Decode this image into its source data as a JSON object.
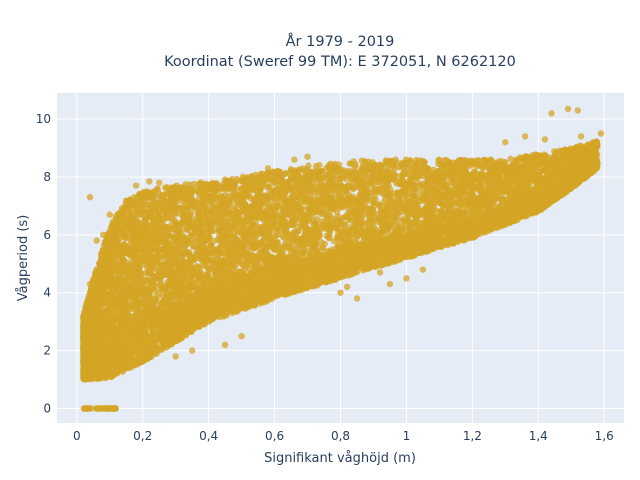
{
  "chart_data": {
    "type": "scatter",
    "title_lines": [
      "År 1979 - 2019",
      "Koordinat (Sweref 99 TM): E 372051, N 6262120"
    ],
    "xlabel": "Signifikant våghöjd (m)",
    "ylabel": "Vågperiod (s)",
    "xlim": [
      -0.06,
      1.66
    ],
    "ylim": [
      -0.5,
      10.9
    ],
    "x_ticks": [
      0,
      0.2,
      0.4,
      0.6,
      0.8,
      1,
      1.2,
      1.4,
      1.6
    ],
    "x_tick_labels": [
      "0",
      "0,2",
      "0,4",
      "0,6",
      "0,8",
      "1",
      "1,2",
      "1,4",
      "1,6"
    ],
    "y_ticks": [
      0,
      2,
      4,
      6,
      8,
      10
    ],
    "y_tick_labels": [
      "0",
      "2",
      "4",
      "6",
      "8",
      "10"
    ],
    "grid": true,
    "background_color": "#e5ecf6",
    "grid_color": "#ffffff",
    "point_color": "#d4a526",
    "series": [
      {
        "envelope": {
          "lower": [
            [
              0.02,
              1.0
            ],
            [
              0.1,
              1.05
            ],
            [
              0.2,
              1.6
            ],
            [
              0.3,
              2.3
            ],
            [
              0.4,
              3.0
            ],
            [
              0.6,
              3.8
            ],
            [
              0.8,
              4.5
            ],
            [
              1.0,
              5.2
            ],
            [
              1.2,
              5.9
            ],
            [
              1.4,
              6.8
            ],
            [
              1.5,
              7.6
            ],
            [
              1.58,
              8.3
            ]
          ],
          "upper": [
            [
              0.02,
              3.2
            ],
            [
              0.05,
              4.5
            ],
            [
              0.1,
              6.3
            ],
            [
              0.15,
              7.2
            ],
            [
              0.2,
              7.5
            ],
            [
              0.3,
              7.7
            ],
            [
              0.5,
              8.0
            ],
            [
              0.7,
              8.4
            ],
            [
              0.9,
              8.6
            ],
            [
              1.1,
              8.6
            ],
            [
              1.3,
              8.6
            ],
            [
              1.5,
              9.0
            ],
            [
              1.6,
              9.3
            ]
          ]
        },
        "outliers": [
          {
            "x": 1.44,
            "y": 10.2
          },
          {
            "x": 1.49,
            "y": 10.35
          },
          {
            "x": 1.52,
            "y": 10.3
          },
          {
            "x": 1.59,
            "y": 9.5
          },
          {
            "x": 1.53,
            "y": 9.4
          },
          {
            "x": 1.56,
            "y": 9.0
          },
          {
            "x": 1.3,
            "y": 9.2
          },
          {
            "x": 1.36,
            "y": 9.4
          },
          {
            "x": 1.42,
            "y": 9.3
          },
          {
            "x": 0.22,
            "y": 7.85
          },
          {
            "x": 0.25,
            "y": 7.8
          },
          {
            "x": 0.18,
            "y": 7.7
          },
          {
            "x": 0.1,
            "y": 6.7
          },
          {
            "x": 0.08,
            "y": 6.0
          },
          {
            "x": 0.06,
            "y": 5.8
          },
          {
            "x": 0.04,
            "y": 4.3
          },
          {
            "x": 0.58,
            "y": 8.3
          },
          {
            "x": 0.66,
            "y": 8.6
          },
          {
            "x": 0.7,
            "y": 8.7
          },
          {
            "x": 0.94,
            "y": 8.5
          },
          {
            "x": 0.95,
            "y": 4.3
          },
          {
            "x": 0.92,
            "y": 4.7
          },
          {
            "x": 0.88,
            "y": 5.0
          },
          {
            "x": 0.85,
            "y": 3.8
          },
          {
            "x": 0.8,
            "y": 4.0
          },
          {
            "x": 0.82,
            "y": 4.2
          },
          {
            "x": 0.5,
            "y": 2.5
          },
          {
            "x": 0.45,
            "y": 2.2
          },
          {
            "x": 0.3,
            "y": 1.8
          },
          {
            "x": 0.35,
            "y": 2.0
          },
          {
            "x": 1.0,
            "y": 4.5
          },
          {
            "x": 1.05,
            "y": 4.8
          },
          {
            "x": 0.04,
            "y": 7.3
          },
          {
            "x": 0.37,
            "y": 7.75
          }
        ],
        "zero_band": {
          "x_min": 0.02,
          "x_max": 0.12,
          "y": 0
        }
      }
    ]
  }
}
